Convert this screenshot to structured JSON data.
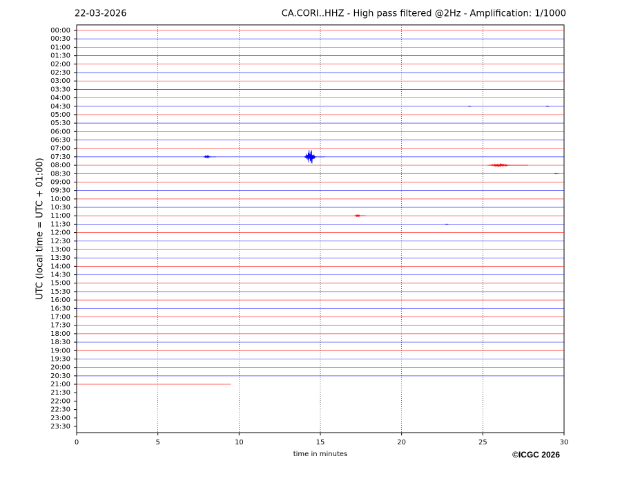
{
  "chart_data": {
    "type": "helicorder",
    "date": "22-03-2026",
    "title": "CA.CORI..HHZ - High pass filtered @2Hz - Amplification: 1/1000",
    "ylabel": "UTC (local time = UTC + 01:00)",
    "xlabel": "time in minutes",
    "copyright": "©ICGC 2026",
    "categories": [
      "00:00",
      "00:30",
      "01:00",
      "01:30",
      "02:00",
      "02:30",
      "03:00",
      "03:30",
      "04:00",
      "04:30",
      "05:00",
      "05:30",
      "06:00",
      "06:30",
      "07:00",
      "07:30",
      "08:00",
      "08:30",
      "09:00",
      "09:30",
      "10:00",
      "10:30",
      "11:00",
      "11:30",
      "12:00",
      "12:30",
      "13:00",
      "13:30",
      "14:00",
      "14:30",
      "15:00",
      "15:30",
      "16:00",
      "16:30",
      "17:00",
      "17:30",
      "18:00",
      "18:30",
      "19:00",
      "19:30",
      "20:00",
      "20:30",
      "21:00",
      "21:30",
      "22:00",
      "22:30",
      "23:00",
      "23:30"
    ],
    "values": [
      30,
      30,
      30,
      30,
      30,
      30,
      30,
      30,
      30,
      30,
      30,
      30,
      30,
      30,
      30,
      30,
      30,
      30,
      30,
      30,
      30,
      30,
      30,
      30,
      30,
      30,
      30,
      30,
      30,
      30,
      30,
      30,
      30,
      30,
      30,
      30,
      30,
      30,
      30,
      30,
      30,
      30,
      9.5,
      null,
      null,
      null,
      null,
      null
    ],
    "colors": [
      "#ff0000",
      "#0000ff"
    ],
    "events": [
      {
        "row": 9,
        "x": [
          24.1,
          24.3
        ],
        "amplitude": 0.05
      },
      {
        "row": 9,
        "x": [
          28.9,
          29.1
        ],
        "amplitude": 0.06
      },
      {
        "row": 15,
        "x": [
          7.8,
          8.6
        ],
        "amplitude": 0.2
      },
      {
        "row": 15,
        "x": [
          14.0,
          15.3
        ],
        "amplitude": 0.8
      },
      {
        "row": 16,
        "x": [
          25.3,
          27.8
        ],
        "amplitude": 0.18
      },
      {
        "row": 17,
        "x": [
          29.4,
          29.7
        ],
        "amplitude": 0.05
      },
      {
        "row": 22,
        "x": [
          17.1,
          17.8
        ],
        "amplitude": 0.15
      },
      {
        "row": 23,
        "x": [
          22.7,
          22.9
        ],
        "amplitude": 0.05
      }
    ],
    "xlim": [
      0,
      30
    ],
    "xticks": [
      0,
      5,
      10,
      15,
      20,
      25,
      30
    ],
    "ylim": [
      -0.66,
      47.74
    ],
    "grid": true
  }
}
